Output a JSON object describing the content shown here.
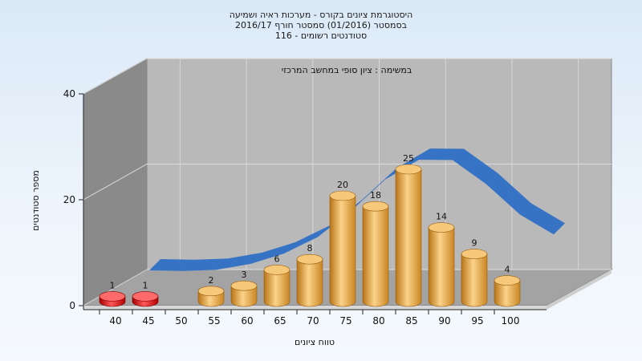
{
  "chart_data": {
    "type": "bar",
    "title_lines": [
      "היסטוגרמת ציונים בקורס - מערכות ראיה ושמיעה",
      "בסמסטר  (01/2016)  סמסטר חורף 2016/17",
      "סטודנטים רשומים - 116"
    ],
    "inner_title": "במשימה : ציון סופי במחשב המרכזי",
    "xlabel": "טווח ציונים",
    "ylabel": "מספר סטודנטים",
    "ylim": [
      0,
      40
    ],
    "yticks": [
      "0",
      "20",
      "40"
    ],
    "categories": [
      "40",
      "45",
      "50",
      "55",
      "60",
      "65",
      "70",
      "75",
      "80",
      "85",
      "90",
      "95",
      "100"
    ],
    "values": [
      1,
      1,
      null,
      2,
      3,
      6,
      8,
      20,
      18,
      25,
      14,
      9,
      4
    ],
    "value_labels": [
      "1",
      "1",
      "",
      "2",
      "3",
      "6",
      "8",
      "20",
      "18",
      "25",
      "14",
      "9",
      "4"
    ],
    "colors": {
      "fail_bar": "#dd1111",
      "pass_bar": "#e8a440",
      "curve": "#2f6fc4",
      "back_wall": "#b9b9b9",
      "side_wall": "#8a8a8a",
      "floor": "#9f9f9f"
    },
    "fail_threshold": 50,
    "grid": true,
    "legend": "none"
  }
}
